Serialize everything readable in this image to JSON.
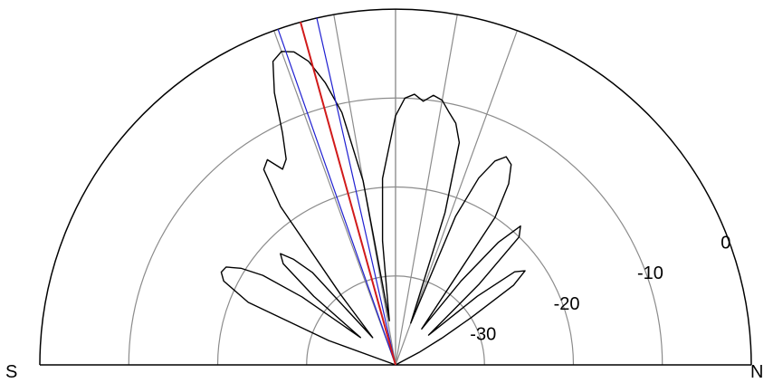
{
  "chart_data": {
    "type": "polar",
    "half_plane": "upper",
    "labels": {
      "left": "S",
      "right": "N"
    },
    "radial_axis": {
      "unit_labels": [
        "-30",
        "-20",
        "-10",
        "0"
      ],
      "range_db": [
        -40,
        0
      ],
      "rings_db": [
        -30,
        -20,
        -10,
        0
      ],
      "angular_grid_deg": [
        90,
        80,
        70
      ]
    },
    "colors": {
      "outer": "#000000",
      "grid": "#8c8c8c",
      "pattern": "#000000",
      "main_direction": "#d11a1a",
      "bounds": "#1f1fd1"
    },
    "main_direction_deg": 105.5,
    "bounds_deg": [
      102.8,
      109.3
    ],
    "pattern": {
      "angle_deg": [
        180,
        175,
        170,
        165,
        160,
        157,
        154,
        152,
        150,
        148,
        146,
        144,
        142,
        140,
        138,
        136,
        134,
        132,
        130,
        128,
        126,
        124,
        122,
        120,
        118,
        116,
        114,
        112,
        110,
        108,
        106,
        104,
        102,
        100,
        98,
        96,
        94,
        92,
        90,
        88,
        86,
        84,
        82,
        80,
        78,
        76,
        74,
        72,
        70,
        68,
        66,
        64,
        62,
        60,
        58,
        56,
        54,
        52,
        50,
        48,
        46,
        44,
        42,
        40,
        38,
        36,
        34,
        32,
        30,
        28,
        26,
        24,
        22,
        20,
        18,
        16,
        14,
        12,
        10,
        8,
        6,
        4,
        2,
        0
      ],
      "gain_db": [
        -40,
        -40,
        -40,
        -40,
        -32,
        -22,
        -18.5,
        -17.8,
        -18,
        -19.5,
        -22,
        -27,
        -35,
        -28,
        -23,
        -22,
        -23.5,
        -26,
        -36,
        -30,
        -18,
        -13.5,
        -12.8,
        -14.6,
        -13.8,
        -11,
        -6.5,
        -3.2,
        -2.5,
        -3,
        -4.5,
        -7.3,
        -11,
        -19,
        -35,
        -26,
        -19,
        -16,
        -12,
        -10,
        -9.5,
        -10.2,
        -9.4,
        -9.8,
        -11,
        -12,
        -14,
        -22,
        -35,
        -22,
        -17,
        -14.5,
        -13.5,
        -14,
        -16,
        -20,
        -35,
        -28,
        -22,
        -19,
        -20,
        -27,
        -35,
        -28,
        -23,
        -22,
        -24,
        -30,
        -34,
        -37,
        -40,
        -40,
        -40,
        -40,
        -40,
        -40,
        -40,
        -40,
        -40,
        -40,
        -40,
        -40,
        -40,
        -40
      ]
    }
  }
}
